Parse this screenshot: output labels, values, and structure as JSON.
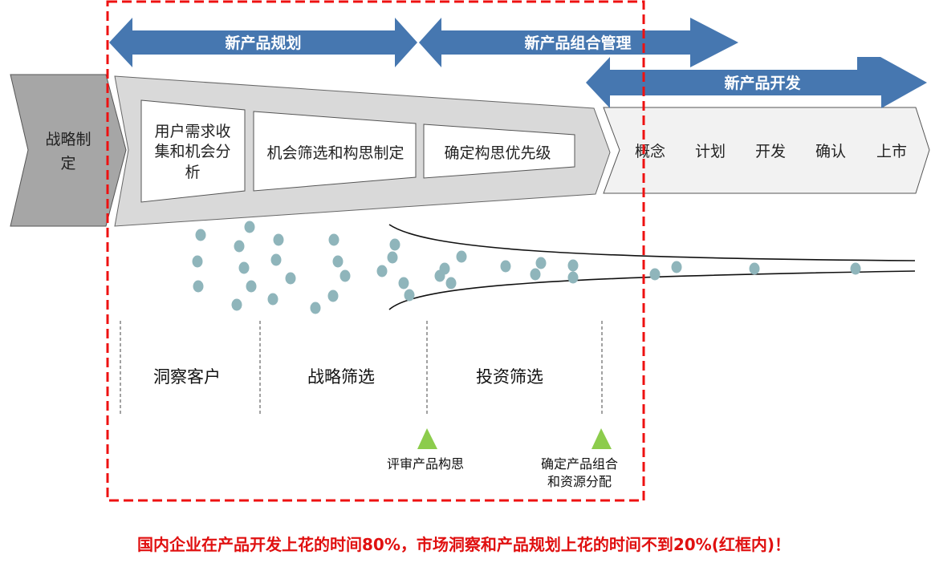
{
  "arrows": {
    "planning": "新产品规划",
    "portfolio": "新产品组合管理",
    "development": "新产品开发"
  },
  "strategy": {
    "line1": "战略制",
    "line2": "定"
  },
  "funnel_boxes": {
    "box1": {
      "line1": "用户需求收",
      "line2": "集和机会分",
      "line3": "析"
    },
    "box2": "机会筛选和构思制定",
    "box3": "确定构思优先级"
  },
  "dev_stages": [
    "概念",
    "计划",
    "开发",
    "确认",
    "上市"
  ],
  "phases": [
    "洞察客户",
    "战略筛选",
    "投资筛选"
  ],
  "milestones": [
    {
      "line1": "评审产品构思",
      "line2": ""
    },
    {
      "line1": "确定产品组合",
      "line2": "和资源分配"
    }
  ],
  "footer": "国内企业在产品开发上花的时间80%，市场洞察和产品规划上花的时间不到20%(红框内)！",
  "colors": {
    "arrow": "#4677b0",
    "dot": "#8fb5bb",
    "highlight": "#ee1111",
    "milestone": "#8ccc4c"
  }
}
